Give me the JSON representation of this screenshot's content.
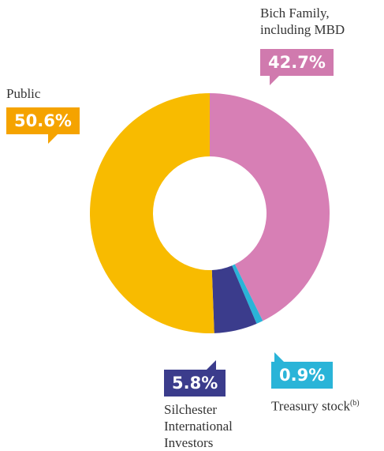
{
  "chart_data": {
    "type": "donut",
    "categories": [
      "Bich Family, including MBD",
      "Treasury stock",
      "Silchester International Investors",
      "Public"
    ],
    "name_superscripts": [
      null,
      "(b)",
      null,
      null
    ],
    "values": [
      42.7,
      0.9,
      5.8,
      50.6
    ],
    "value_labels": [
      "42.7%",
      "0.9%",
      "5.8%",
      "50.6%"
    ],
    "colors": [
      "#d77fb5",
      "#2ab4d8",
      "#3b3c8c",
      "#f8bb00"
    ],
    "label_colors": [
      "#d07aae",
      "#2ab4d8",
      "#3b3c8c",
      "#f5a300"
    ]
  }
}
